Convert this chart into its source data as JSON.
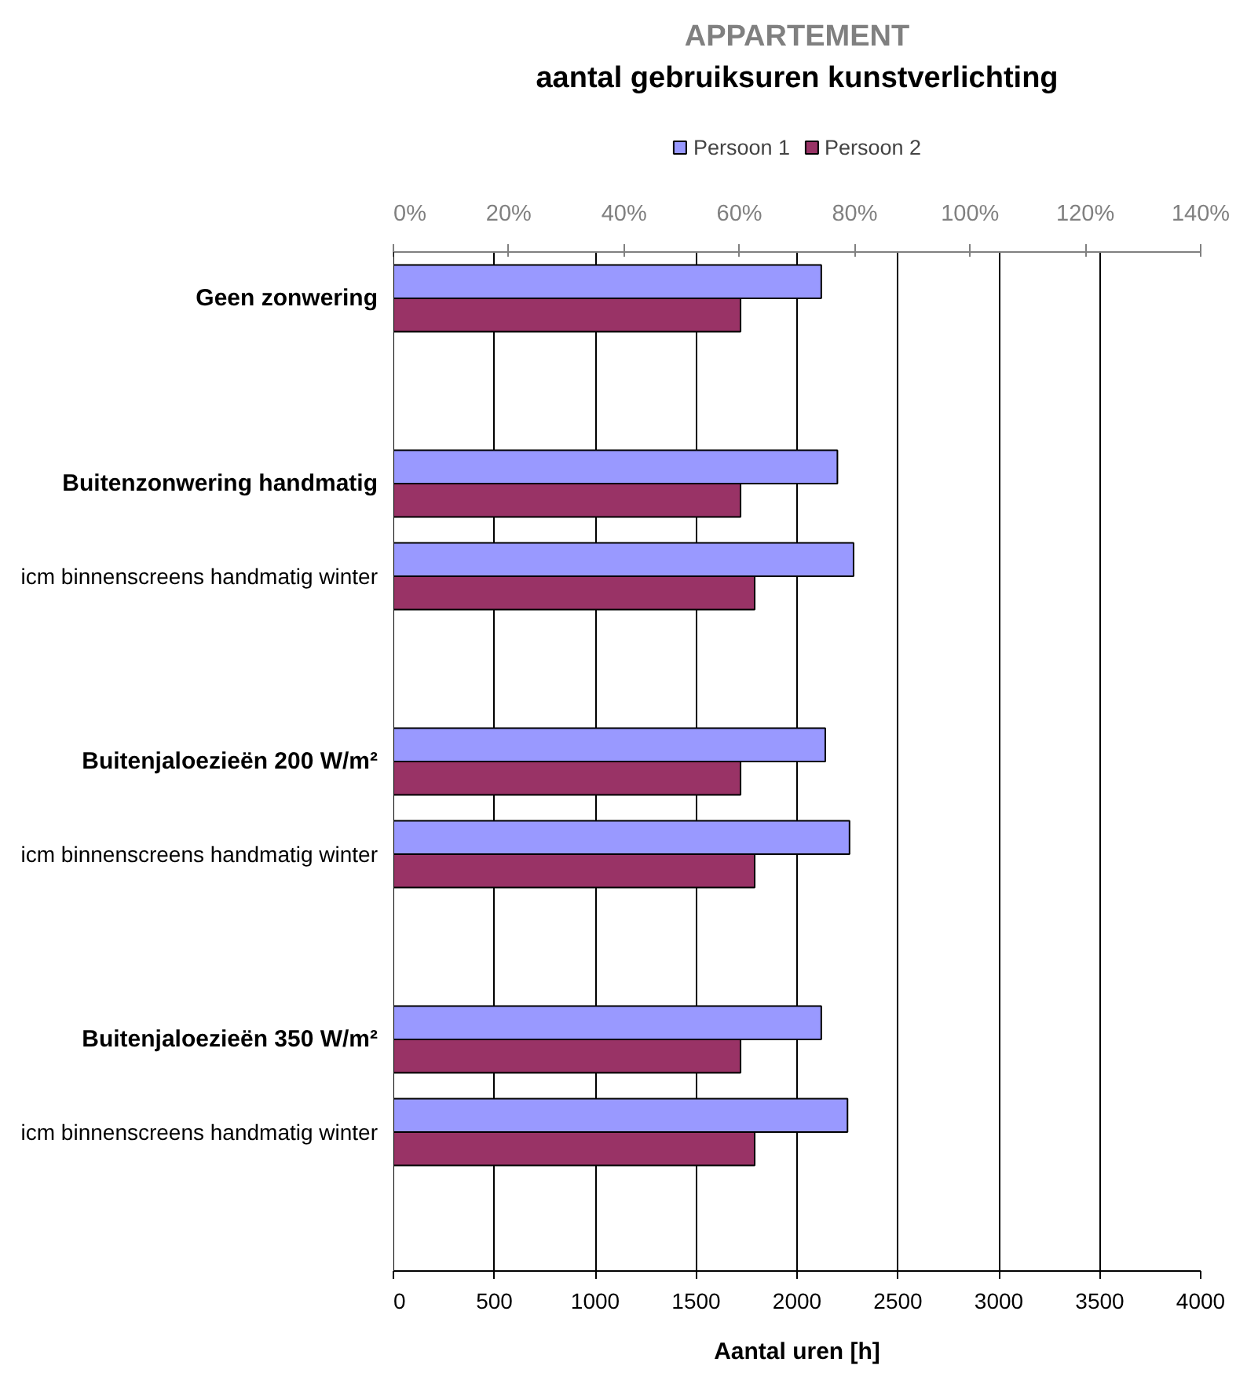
{
  "chart_data": {
    "type": "bar",
    "orientation": "horizontal",
    "title": "APPARTEMENT",
    "subtitle": "aantal gebruiksuren kunstverlichting",
    "xlabel": "Aantal uren [h]",
    "categories": [
      "Geen zonwering",
      null,
      "Buitenzonwering handmatig",
      "icm binnenscreens handmatig winter",
      null,
      "Buitenjaloezieën 200 W/m²",
      "icm binnenscreens handmatig winter",
      null,
      "Buitenjaloezieën 350 W/m²",
      "icm binnenscreens handmatig winter",
      null
    ],
    "series": [
      {
        "name": "Persoon 1",
        "color": "#9999ff",
        "values": [
          2120,
          null,
          2200,
          2280,
          null,
          2140,
          2260,
          null,
          2120,
          2250,
          null
        ]
      },
      {
        "name": "Persoon 2",
        "color": "#993366",
        "values": [
          1720,
          null,
          1720,
          1790,
          null,
          1720,
          1790,
          null,
          1720,
          1790,
          null
        ]
      }
    ],
    "xlim": [
      0,
      4000
    ],
    "xticks": [
      0,
      500,
      1000,
      1500,
      2000,
      2500,
      3000,
      3500,
      4000
    ],
    "x2lim": [
      0,
      140
    ],
    "x2ticks": [
      {
        "value": 0,
        "label": "0%"
      },
      {
        "value": 20,
        "label": "20%"
      },
      {
        "value": 40,
        "label": "40%"
      },
      {
        "value": 60,
        "label": "60%"
      },
      {
        "value": 80,
        "label": "80%"
      },
      {
        "value": 100,
        "label": "100%"
      },
      {
        "value": 120,
        "label": "120%"
      },
      {
        "value": 140,
        "label": "140%"
      }
    ],
    "grid": "x",
    "legend": "top"
  }
}
